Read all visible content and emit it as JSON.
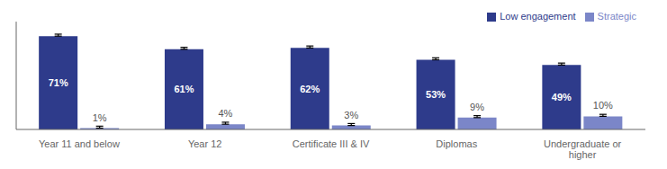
{
  "chart_data": {
    "type": "bar",
    "categories": [
      "Year 11 and below",
      "Year 12",
      "Certificate III & IV",
      "Diplomas",
      "Undergraduate or\nhigher"
    ],
    "series": [
      {
        "name": "Low engagement",
        "color": "#2E3B8B",
        "values": [
          71,
          61,
          62,
          53,
          49
        ],
        "value_labels": [
          "71%",
          "61%",
          "62%",
          "53%",
          "49%"
        ],
        "error_minus": [
          0,
          0,
          0,
          0,
          0
        ],
        "error_plus": [
          1.5,
          1.5,
          1.5,
          1.5,
          1.5
        ]
      },
      {
        "name": "Strategic",
        "color": "#7B86C8",
        "values": [
          1,
          4,
          3,
          9,
          10
        ],
        "value_labels": [
          "1%",
          "4%",
          "3%",
          "9%",
          "10%"
        ],
        "error_minus": [
          0,
          0,
          0,
          0,
          0
        ],
        "error_plus": [
          1.5,
          1.5,
          1.5,
          1.5,
          1.5
        ]
      }
    ],
    "ylim": [
      0,
      82
    ],
    "data_labels": true,
    "legend": "upper right",
    "tick_labels": "x",
    "grid": false
  }
}
